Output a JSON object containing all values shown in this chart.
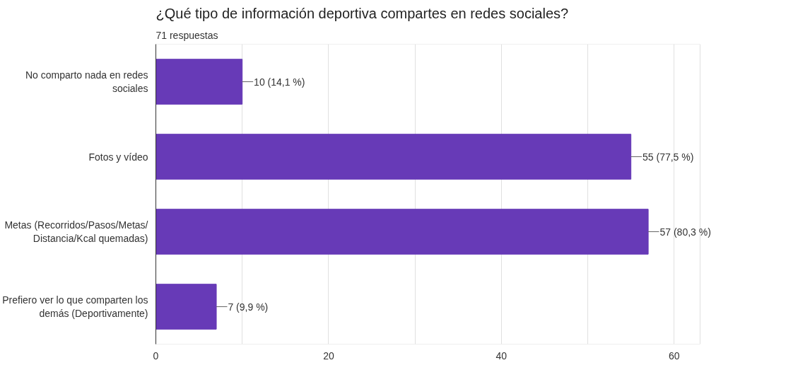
{
  "chart_data": {
    "type": "bar",
    "orientation": "horizontal",
    "title": "¿Qué tipo de información deportiva compartes en redes sociales?",
    "subtitle": "71 respuestas",
    "categories": [
      "No comparto nada en redes\nsociales",
      "Fotos y vídeo",
      "Metas (Recorridos/Pasos/Metas/\nDistancia/Kcal quemadas)",
      "Prefiero ver lo que comparten los\ndemás (Deportivamente)"
    ],
    "values": [
      10,
      55,
      57,
      7
    ],
    "color": "#673ab7",
    "value_labels": [
      "10 (14,1 %)",
      "55 (77,5 %)",
      "57 (80,3 %)",
      "7 (9,9 %)"
    ],
    "xlim": [
      0,
      63
    ],
    "xticks": [
      0,
      {
        "value": 10,
        "label": null
      },
      20,
      {
        "value": 30,
        "label": null
      },
      40,
      {
        "value": 50,
        "label": null
      },
      60
    ],
    "grid": "x"
  }
}
